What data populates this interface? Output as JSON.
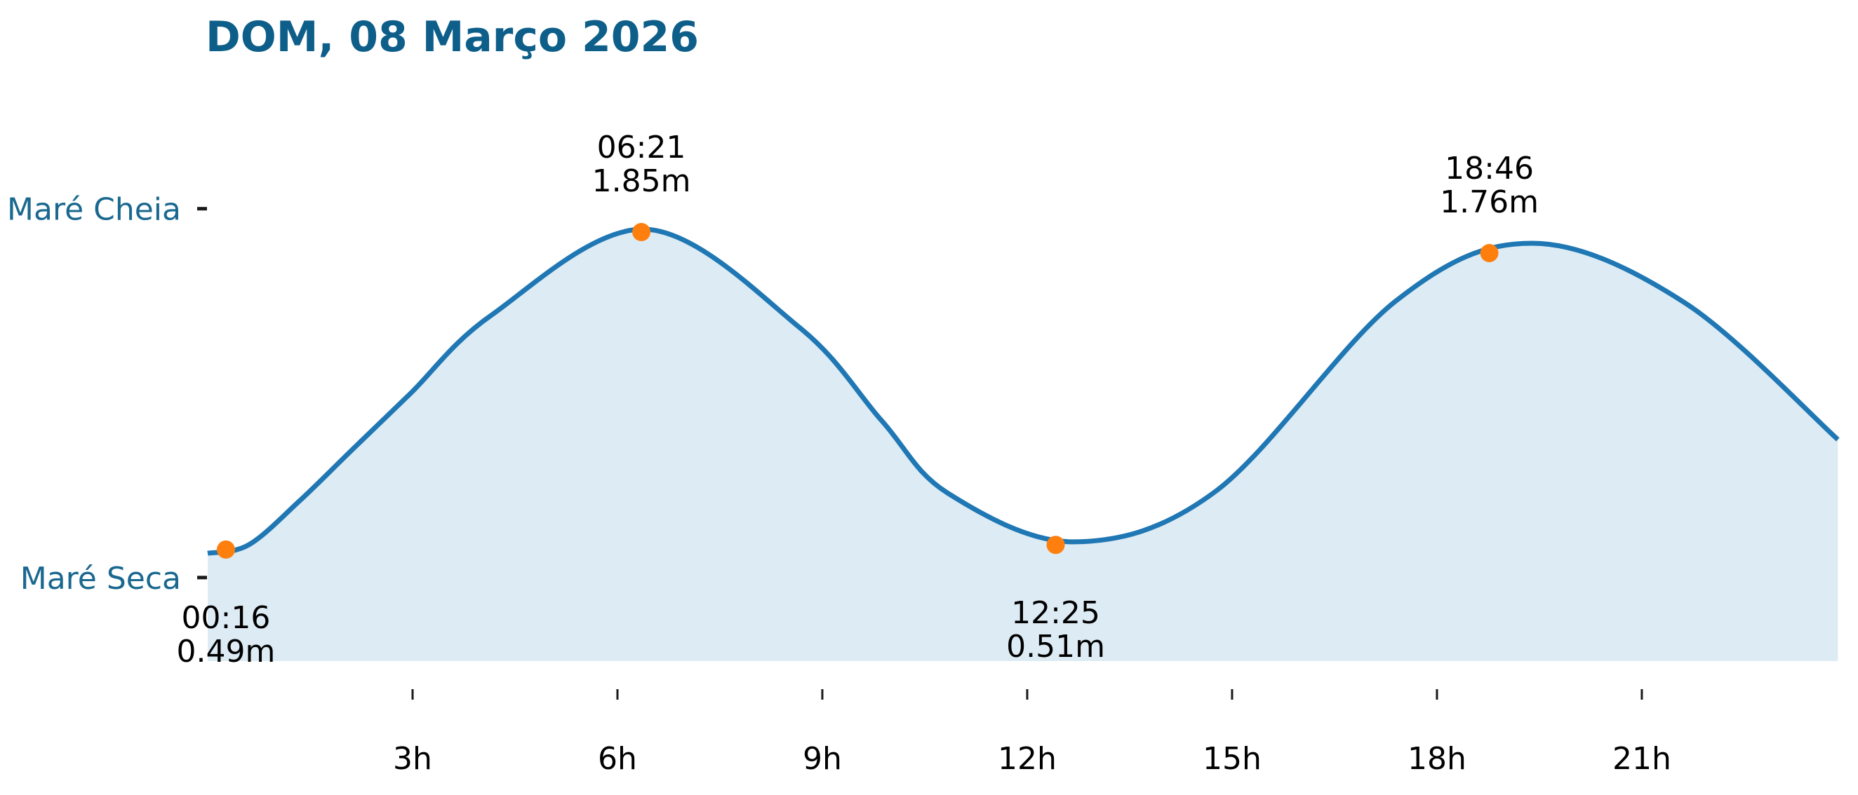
{
  "title": "DOM, 08 Março 2026",
  "colors": {
    "title": "#0e5e8a",
    "axis_label": "#1a688f",
    "line": "#1f77b4",
    "area_fill": "#ddebf4",
    "marker": "#ff7f0e",
    "tick": "#1a1a1a",
    "annotation_text": "#000000",
    "background": "#ffffff"
  },
  "chart_data": {
    "type": "area",
    "title": "DOM, 08 Março 2026",
    "x_axis": {
      "unit": "hours",
      "range_hours": [
        0,
        23.87
      ],
      "grid": false
    },
    "x_ticks": [
      {
        "hour": 3,
        "label": "3h"
      },
      {
        "hour": 6,
        "label": "6h"
      },
      {
        "hour": 9,
        "label": "9h"
      },
      {
        "hour": 12,
        "label": "12h"
      },
      {
        "hour": 15,
        "label": "15h"
      },
      {
        "hour": 18,
        "label": "18h"
      },
      {
        "hour": 21,
        "label": "21h"
      }
    ],
    "y_axis_marks": [
      {
        "label": "Maré Cheia",
        "level_m": 1.95
      },
      {
        "label": "Maré Seca",
        "level_m": 0.37
      }
    ],
    "events": [
      {
        "type": "low",
        "time": "00:16",
        "height_label": "0.49m",
        "height_m": 0.49,
        "hour": 0.2667
      },
      {
        "type": "high",
        "time": "06:21",
        "height_label": "1.85m",
        "height_m": 1.85,
        "hour": 6.35
      },
      {
        "type": "low",
        "time": "12:25",
        "height_label": "0.51m",
        "height_m": 0.51,
        "hour": 12.4167
      },
      {
        "type": "high",
        "time": "18:46",
        "height_label": "1.76m",
        "height_m": 1.76,
        "hour": 18.7667
      }
    ],
    "curve_points_hour_m": [
      [
        0,
        0.474
      ],
      [
        0.6,
        0.51
      ],
      [
        1.35,
        0.7
      ],
      [
        2.1,
        0.913
      ],
      [
        2.96,
        1.156
      ],
      [
        4.15,
        1.493
      ],
      [
        6.41,
        1.862
      ],
      [
        8.67,
        1.44
      ],
      [
        9.87,
        1.042
      ],
      [
        10.83,
        0.733
      ],
      [
        12.68,
        0.523
      ],
      [
        14.77,
        0.742
      ],
      [
        17.39,
        1.553
      ],
      [
        19.4,
        1.802
      ],
      [
        21.63,
        1.547
      ],
      [
        23.87,
        0.961
      ]
    ]
  }
}
